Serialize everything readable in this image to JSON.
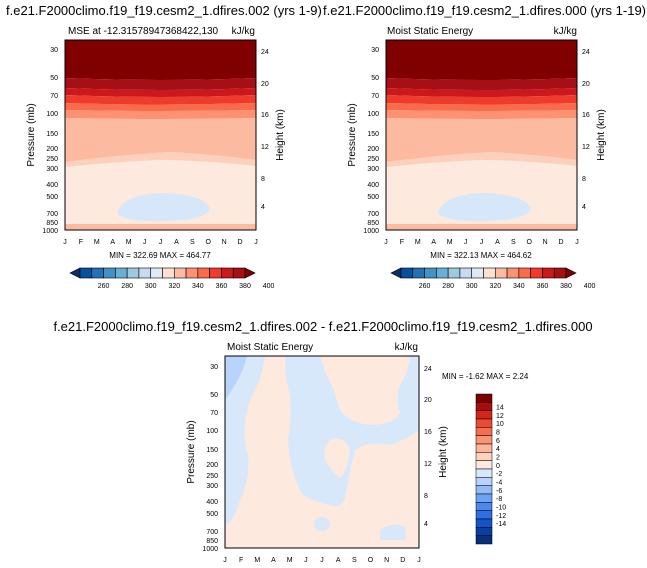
{
  "colors": {
    "mse_scale": [
      "#08306b",
      "#08519c",
      "#2171b5",
      "#4292c6",
      "#6baed6",
      "#9ecae1",
      "#c6dbef",
      "#deebf7",
      "#fee0d2",
      "#fcbba1",
      "#fc9272",
      "#fb6a4a",
      "#ef3b2c",
      "#cb181d",
      "#a50f15",
      "#800000"
    ],
    "diff_scale": [
      "#08307a",
      "#0a3fa0",
      "#1553c8",
      "#2f6fe0",
      "#4a88ee",
      "#6ea2f3",
      "#93bcf7",
      "#b8d4fa",
      "#d8e8fb",
      "#fde9dd",
      "#fcd2bd",
      "#fbb59a",
      "#f99475",
      "#f56e4f",
      "#ec4a32",
      "#d42518",
      "#a80c0c",
      "#7a0000"
    ]
  },
  "panels": {
    "left": {
      "suptitle": "f.e21.F2000climo.f19_f19.cesm2_1.dfires.002 (yrs 1-9)",
      "left_title": "MSE at -12.31578947368422,130",
      "units": "kJ/kg",
      "stats": "MIN = 322.69 MAX = 464.77"
    },
    "middle": {
      "suptitle": "f.e21.F2000climo.f19_f19.cesm2_1.dfires.000 (yrs 1-19)",
      "left_title": "Moist Static Energy",
      "units": "kJ/kg",
      "stats": "MIN = 322.13 MAX = 464.62"
    },
    "diff": {
      "suptitle": "f.e21.F2000climo.f19_f19.cesm2_1.dfires.002 - f.e21.F2000climo.f19_f19.cesm2_1.dfires.000",
      "left_title": "Moist Static Energy",
      "units": "kJ/kg",
      "stats": "MIN = -1.62 MAX =  2.24"
    }
  },
  "chart_data": [
    {
      "type": "heatmap",
      "name": "MSE at -12.31578947368422,130",
      "x_categories": [
        "J",
        "F",
        "M",
        "A",
        "M",
        "J",
        "J",
        "A",
        "S",
        "O",
        "N",
        "D",
        "J"
      ],
      "ylabel": "Pressure (mb)",
      "y2label": "Height (km)",
      "pressure_ticks": [
        "30",
        "50",
        "70",
        "100",
        "150",
        "200",
        "250",
        "300",
        "400",
        "500",
        "700",
        "850",
        "1000"
      ],
      "height_ticks": [
        "24",
        "20",
        "16",
        "12",
        "8",
        "4"
      ],
      "colorbar_labels": [
        "260",
        "280",
        "300",
        "320",
        "340",
        "360",
        "380",
        "400"
      ],
      "min": 322.69,
      "max": 464.77
    },
    {
      "type": "heatmap",
      "name": "Moist Static Energy",
      "x_categories": [
        "J",
        "F",
        "M",
        "A",
        "M",
        "J",
        "J",
        "A",
        "S",
        "O",
        "N",
        "D",
        "J"
      ],
      "ylabel": "Pressure (mb)",
      "y2label": "Height (km)",
      "pressure_ticks": [
        "30",
        "50",
        "70",
        "100",
        "150",
        "200",
        "250",
        "300",
        "400",
        "500",
        "700",
        "850",
        "1000"
      ],
      "height_ticks": [
        "24",
        "20",
        "16",
        "12",
        "8",
        "4"
      ],
      "colorbar_labels": [
        "260",
        "280",
        "300",
        "320",
        "340",
        "360",
        "380",
        "400"
      ],
      "min": 322.13,
      "max": 464.62
    },
    {
      "type": "heatmap",
      "name": "Moist Static Energy difference",
      "x_categories": [
        "J",
        "F",
        "M",
        "A",
        "M",
        "J",
        "J",
        "A",
        "S",
        "O",
        "N",
        "D",
        "J"
      ],
      "ylabel": "Pressure (mb)",
      "y2label": "Height (km)",
      "pressure_ticks": [
        "30",
        "50",
        "70",
        "100",
        "150",
        "200",
        "250",
        "300",
        "400",
        "500",
        "700",
        "850",
        "1000"
      ],
      "height_ticks": [
        "24",
        "20",
        "16",
        "12",
        "8",
        "4"
      ],
      "colorbar_labels": [
        "14",
        "12",
        "10",
        "8",
        "6",
        "4",
        "2",
        "0",
        "-2",
        "-4",
        "-6",
        "-8",
        "-10",
        "-12",
        "-14"
      ],
      "min": -1.62,
      "max": 2.24
    }
  ]
}
